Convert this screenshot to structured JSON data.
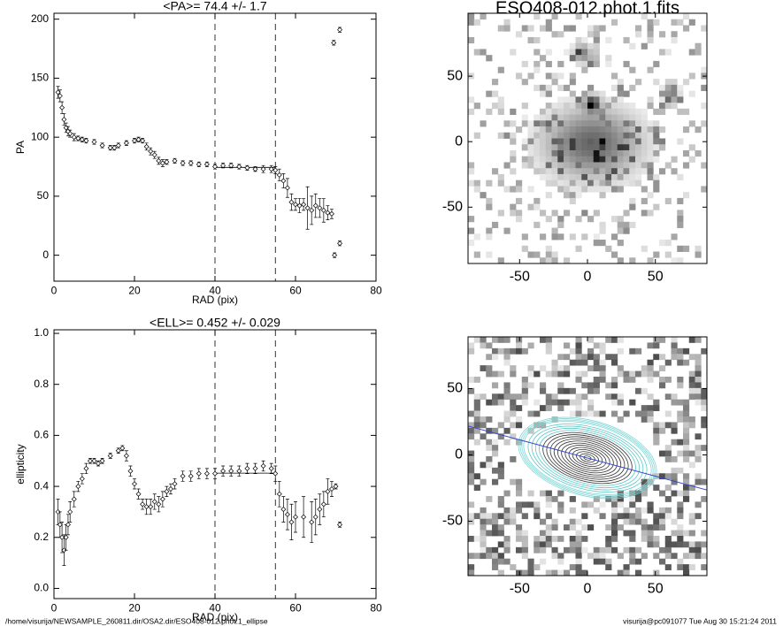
{
  "chart_data": [
    {
      "type": "scatter",
      "title": "<PA>=  74.4 +/-   1.7",
      "xlabel": "RAD (pix)",
      "ylabel": "PA",
      "xlim": [
        0,
        80
      ],
      "xticks": [
        0,
        20,
        40,
        60,
        80
      ],
      "ylim": [
        -22,
        205
      ],
      "yticks": [
        0,
        50,
        100,
        150,
        200
      ],
      "vlines": [
        40,
        55
      ],
      "hline": {
        "y": 74.4,
        "x": [
          40,
          55
        ]
      },
      "series": [
        {
          "x": [
            1,
            1.5,
            2,
            2.5,
            3,
            3.5,
            4,
            5,
            6,
            7,
            8,
            10,
            12,
            14,
            15,
            16,
            18,
            20,
            21,
            22,
            23,
            24,
            25,
            26,
            27,
            28,
            30,
            32,
            34,
            36,
            38,
            40,
            42,
            44,
            46,
            48,
            50,
            52,
            54,
            55,
            56,
            57,
            58,
            59,
            60,
            61,
            62,
            63,
            64,
            65,
            66,
            67,
            68,
            69,
            69.5,
            69.7,
            71,
            71
          ],
          "values": [
            138,
            135,
            125,
            115,
            108,
            105,
            103,
            100,
            99,
            98,
            97,
            96,
            93,
            91,
            91,
            93,
            95,
            97,
            98,
            97,
            92,
            88,
            85,
            80,
            78,
            79,
            80,
            78,
            78,
            77,
            77,
            75,
            76,
            76,
            75,
            74,
            73,
            73,
            73,
            72,
            68,
            63,
            57,
            45,
            43,
            42,
            43,
            40,
            38,
            42,
            40,
            38,
            36,
            35,
            180,
            0,
            191,
            10
          ],
          "errors": [
            5,
            5,
            5,
            5,
            4,
            4,
            3,
            3,
            2,
            2,
            2,
            2,
            2,
            2,
            2,
            2,
            2,
            2,
            2,
            2,
            3,
            3,
            3,
            3,
            3,
            2,
            2,
            2,
            2,
            2,
            2,
            2,
            2,
            2,
            2,
            2,
            2,
            3,
            3,
            3,
            5,
            6,
            8,
            7,
            5,
            6,
            5,
            18,
            12,
            10,
            8,
            10,
            6,
            4,
            2,
            2,
            2,
            2
          ]
        }
      ]
    },
    {
      "type": "scatter",
      "title": "<ELL>= 0.452 +/-  0.029",
      "xlabel": "RAD (pix)",
      "ylabel": "ellipticity",
      "xlim": [
        0,
        80
      ],
      "xticks": [
        0,
        20,
        40,
        60,
        80
      ],
      "ylim": [
        -0.04,
        1.014
      ],
      "yticks": [
        {
          "value": 0,
          "label": "0.0"
        },
        0.2,
        0.4,
        0.6,
        0.8,
        {
          "value": 1,
          "label": "1.0"
        }
      ],
      "vlines": [
        40,
        55
      ],
      "hline": {
        "y": 0.452,
        "x": [
          40,
          55
        ]
      },
      "series": [
        {
          "x": [
            1,
            1.5,
            2,
            2.5,
            3,
            3.5,
            4,
            5,
            6,
            7,
            8,
            9,
            10,
            11,
            12,
            14,
            16,
            17,
            18,
            19,
            20,
            21,
            22,
            23,
            24,
            25,
            26,
            27,
            28,
            29,
            30,
            32,
            34,
            36,
            38,
            40,
            42,
            44,
            46,
            48,
            50,
            52,
            54,
            55,
            56,
            57,
            58,
            59,
            60,
            62,
            64,
            65,
            66,
            67,
            68,
            69,
            70,
            71
          ],
          "values": [
            0.3,
            0.25,
            0.2,
            0.15,
            0.2,
            0.25,
            0.3,
            0.35,
            0.4,
            0.43,
            0.47,
            0.5,
            0.5,
            0.49,
            0.5,
            0.52,
            0.54,
            0.55,
            0.52,
            0.46,
            0.41,
            0.37,
            0.33,
            0.32,
            0.32,
            0.34,
            0.33,
            0.35,
            0.38,
            0.39,
            0.41,
            0.44,
            0.44,
            0.45,
            0.45,
            0.45,
            0.46,
            0.46,
            0.46,
            0.47,
            0.47,
            0.48,
            0.47,
            0.45,
            0.37,
            0.31,
            0.29,
            0.26,
            0.28,
            0.28,
            0.26,
            0.28,
            0.31,
            0.33,
            0.38,
            0.39,
            0.4,
            0.25
          ],
          "errors": [
            0.05,
            0.05,
            0.06,
            0.06,
            0.05,
            0.04,
            0.04,
            0.03,
            0.02,
            0.02,
            0.02,
            0.01,
            0.01,
            0.01,
            0.01,
            0.01,
            0.01,
            0.01,
            0.02,
            0.02,
            0.02,
            0.02,
            0.02,
            0.03,
            0.03,
            0.03,
            0.03,
            0.03,
            0.02,
            0.02,
            0.02,
            0.02,
            0.02,
            0.02,
            0.02,
            0.02,
            0.02,
            0.02,
            0.02,
            0.02,
            0.02,
            0.02,
            0.02,
            0.03,
            0.05,
            0.05,
            0.06,
            0.07,
            0.06,
            0.08,
            0.08,
            0.07,
            0.06,
            0.05,
            0.05,
            0.03,
            0.01,
            0.01
          ]
        }
      ]
    },
    {
      "type": "image",
      "title": "ESO408-012.phot.1.fits",
      "xlim": [
        -88,
        88
      ],
      "ylim": [
        -93,
        98
      ],
      "xticks": [
        -50,
        0,
        50
      ],
      "yticks": [
        -50,
        0,
        50
      ]
    },
    {
      "type": "image",
      "xlim": [
        -88,
        88
      ],
      "ylim": [
        -91,
        89
      ],
      "xticks": [
        -50,
        0,
        50
      ],
      "yticks": [
        -50,
        0,
        50
      ]
    }
  ],
  "footer": {
    "left": "/home/visurija/NEWSAMPLE_260811.dir/OSA2.dir/ESO408-012.phot.1_ellipse",
    "right": "visurija@pc091077  Tue Aug 30 15:21:24 2011"
  }
}
